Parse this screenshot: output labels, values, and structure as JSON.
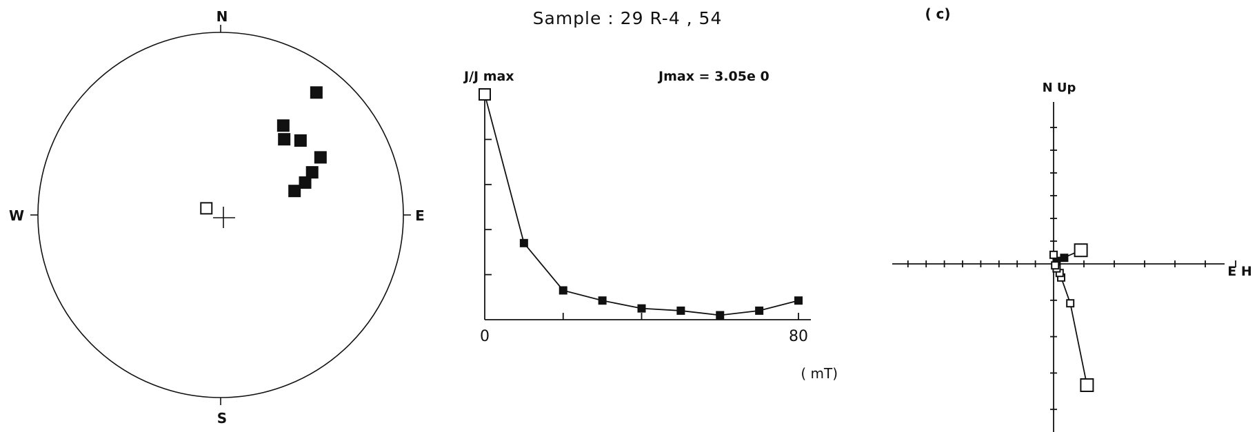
{
  "chart_data": [
    {
      "type": "scatter",
      "subtype": "equal-area stereonet",
      "directions": {
        "north": "N",
        "south": "S",
        "east": "E",
        "west": "W"
      },
      "points": [
        {
          "dec": 38,
          "inc": 16,
          "hemisphere": "lower",
          "filled": true
        },
        {
          "dec": 35,
          "inc": 40,
          "hemisphere": "lower",
          "filled": true
        },
        {
          "dec": 40,
          "inc": 45,
          "hemisphere": "lower",
          "filled": true
        },
        {
          "dec": 47,
          "inc": 40,
          "hemisphere": "lower",
          "filled": true
        },
        {
          "dec": 60,
          "inc": 37,
          "hemisphere": "lower",
          "filled": true
        },
        {
          "dec": 65,
          "inc": 44,
          "hemisphere": "lower",
          "filled": true
        },
        {
          "dec": 69,
          "inc": 49,
          "hemisphere": "lower",
          "filled": true
        },
        {
          "dec": 72,
          "inc": 55,
          "hemisphere": "lower",
          "filled": true
        },
        {
          "dec": 295,
          "inc": 83,
          "hemisphere": "upper",
          "filled": false
        }
      ]
    },
    {
      "type": "line",
      "title": "Sample : 29 R-4 , 54",
      "ylabel": "J/J max",
      "annotation": "Jmax = 3.05e 0",
      "xlabel": "( mT)",
      "x_ticks": [
        "0",
        "80"
      ],
      "xlim": [
        0,
        80
      ],
      "ylim": [
        0,
        1
      ],
      "x": [
        0,
        10,
        20,
        30,
        40,
        50,
        60,
        70,
        80
      ],
      "y": [
        1.0,
        0.34,
        0.13,
        0.085,
        0.05,
        0.04,
        0.02,
        0.04,
        0.085
      ],
      "first_point_open": true
    },
    {
      "type": "line",
      "subtype": "orthogonal vector diagram",
      "panel_label": "( c)",
      "axis_labels": {
        "vertical": "N Up",
        "horizontal": "E H"
      },
      "horizontal_projection": {
        "x": [
          0.9,
          0.1,
          0.35
        ],
        "y": [
          0.45,
          0.1,
          0.2
        ],
        "filled": true,
        "first_point_large": true
      },
      "vertical_projection": {
        "x": [
          1.1,
          0.55,
          0.25,
          0.2,
          0.1,
          0.05,
          0.0
        ],
        "y": [
          -4.0,
          -1.3,
          -0.45,
          -0.3,
          -0.15,
          -0.05,
          0.3
        ],
        "filled": false,
        "first_point_large": true
      },
      "tick_count_positive_x": 7,
      "tick_count_negative_x": 8,
      "tick_count_positive_y": 8,
      "tick_count_negative_y": 8
    }
  ]
}
